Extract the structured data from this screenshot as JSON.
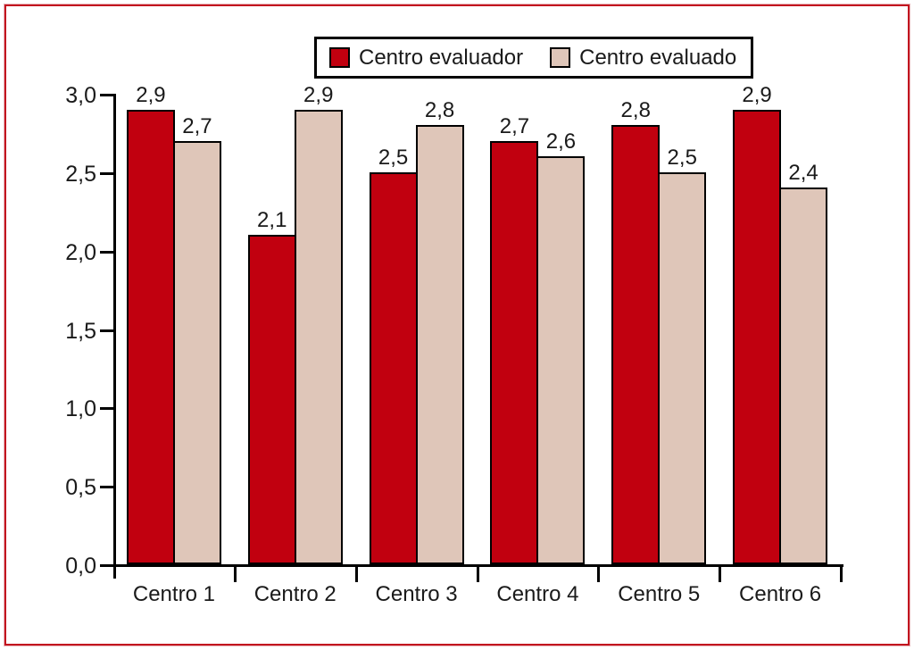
{
  "figure": {
    "frame_color": "#c2121f",
    "background": "#ffffff"
  },
  "legend": {
    "items": [
      {
        "label": "Centro evaluador",
        "swatch_color": "#c1000f"
      },
      {
        "label": "Centro evaluado",
        "swatch_color": "#dfc6b9"
      }
    ]
  },
  "chart_data": {
    "type": "bar",
    "categories": [
      "Centro 1",
      "Centro 2",
      "Centro 3",
      "Centro 4",
      "Centro 5",
      "Centro 6"
    ],
    "series": [
      {
        "name": "Centro evaluador",
        "color": "#c1000f",
        "values": [
          2.9,
          2.1,
          2.5,
          2.7,
          2.8,
          2.9
        ],
        "labels": [
          "2,9",
          "2,1",
          "2,5",
          "2,7",
          "2,8",
          "2,9"
        ]
      },
      {
        "name": "Centro evaluado",
        "color": "#dfc6b9",
        "values": [
          2.7,
          2.9,
          2.8,
          2.6,
          2.5,
          2.4
        ],
        "labels": [
          "2,7",
          "2,9",
          "2,8",
          "2,6",
          "2,5",
          "2,4"
        ]
      }
    ],
    "ylim": [
      0,
      3
    ],
    "yticks": {
      "values": [
        0,
        0.5,
        1.0,
        1.5,
        2.0,
        2.5,
        3.0
      ],
      "labels": [
        "0,0",
        "0,5",
        "1,0",
        "1,5",
        "2,0",
        "2,5",
        "3,0"
      ]
    },
    "xlabel": "",
    "ylabel": "",
    "title": "",
    "grid": false,
    "legend_position": "top-center",
    "bar_edge_color": "#000000"
  }
}
